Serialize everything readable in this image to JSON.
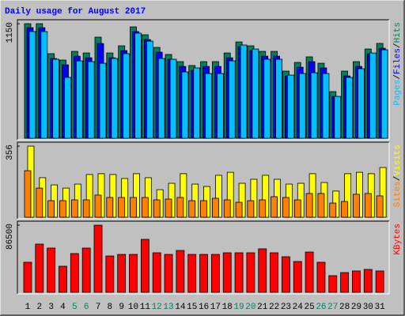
{
  "title": "Daily usage for August 2017",
  "chart_data": [
    {
      "type": "bar",
      "ylim": [
        0,
        1150
      ],
      "yticks": [
        1150
      ],
      "legend_separator": "/",
      "series": [
        {
          "name": "Hits",
          "color": "#00805c",
          "values": [
            1150,
            1150,
            849,
            785,
            872,
            856,
            1015,
            856,
            928,
            1118,
            1039,
            912,
            841,
            769,
            730,
            769,
            769,
            856,
            967,
            928,
            872,
            872,
            674,
            761,
            817,
            753,
            468,
            674,
            769,
            896,
            952
          ]
        },
        {
          "name": "Files",
          "color": "#0000ff",
          "values": [
            1110,
            1110,
            801,
            737,
            824,
            808,
            951,
            808,
            880,
            1071,
            991,
            864,
            793,
            721,
            682,
            721,
            721,
            808,
            920,
            880,
            824,
            824,
            626,
            713,
            769,
            706,
            420,
            626,
            721,
            848,
            904
          ]
        },
        {
          "name": "Pages",
          "color": "#00c0ff",
          "values": [
            1071,
            1071,
            793,
            611,
            777,
            769,
            753,
            801,
            849,
            1055,
            975,
            801,
            793,
            666,
            706,
            650,
            650,
            777,
            936,
            896,
            793,
            793,
            634,
            650,
            658,
            650,
            420,
            611,
            698,
            856,
            888
          ]
        }
      ]
    },
    {
      "type": "bar",
      "ylim": [
        0,
        356
      ],
      "yticks": [
        356
      ],
      "legend_separator": "/",
      "series": [
        {
          "name": "Visits",
          "color": "#ffff00",
          "values": [
            356,
            198,
            162,
            146,
            166,
            214,
            218,
            214,
            194,
            218,
            198,
            138,
            170,
            218,
            166,
            154,
            210,
            225,
            170,
            190,
            210,
            190,
            166,
            170,
            218,
            174,
            131,
            218,
            225,
            218,
            249
          ]
        },
        {
          "name": "Sites",
          "color": "#ff8000",
          "values": [
            233,
            146,
            83,
            83,
            87,
            87,
            111,
            99,
            99,
            99,
            99,
            87,
            91,
            99,
            83,
            83,
            95,
            87,
            75,
            83,
            87,
            103,
            99,
            87,
            119,
            119,
            71,
            79,
            115,
            119,
            107
          ]
        }
      ]
    },
    {
      "type": "bar",
      "ylim": [
        0,
        86500
      ],
      "yticks": [
        86500
      ],
      "categories": [
        "1",
        "2",
        "3",
        "4",
        "5",
        "6",
        "7",
        "8",
        "9",
        "10",
        "11",
        "12",
        "13",
        "14",
        "15",
        "16",
        "17",
        "18",
        "19",
        "20",
        "21",
        "22",
        "23",
        "24",
        "25",
        "26",
        "27",
        "28",
        "29",
        "30",
        "31"
      ],
      "category_colors": [
        "#000000",
        "#000000",
        "#000000",
        "#000000",
        "#008060",
        "#008060",
        "#000000",
        "#000000",
        "#000000",
        "#000000",
        "#000000",
        "#008060",
        "#008060",
        "#000000",
        "#000000",
        "#000000",
        "#000000",
        "#000000",
        "#008060",
        "#008060",
        "#000000",
        "#000000",
        "#000000",
        "#000000",
        "#000000",
        "#008060",
        "#008060",
        "#000000",
        "#000000",
        "#000000",
        "#000000"
      ],
      "series": [
        {
          "name": "KBytes",
          "color": "#ff0000",
          "values": [
            38700,
            62100,
            57000,
            33600,
            49900,
            57000,
            86500,
            46800,
            48800,
            48800,
            68200,
            50900,
            48800,
            53900,
            48800,
            48800,
            48800,
            50900,
            50900,
            50900,
            56000,
            50900,
            45800,
            39700,
            51900,
            38700,
            21400,
            25400,
            27500,
            29500,
            27500
          ]
        }
      ]
    }
  ]
}
